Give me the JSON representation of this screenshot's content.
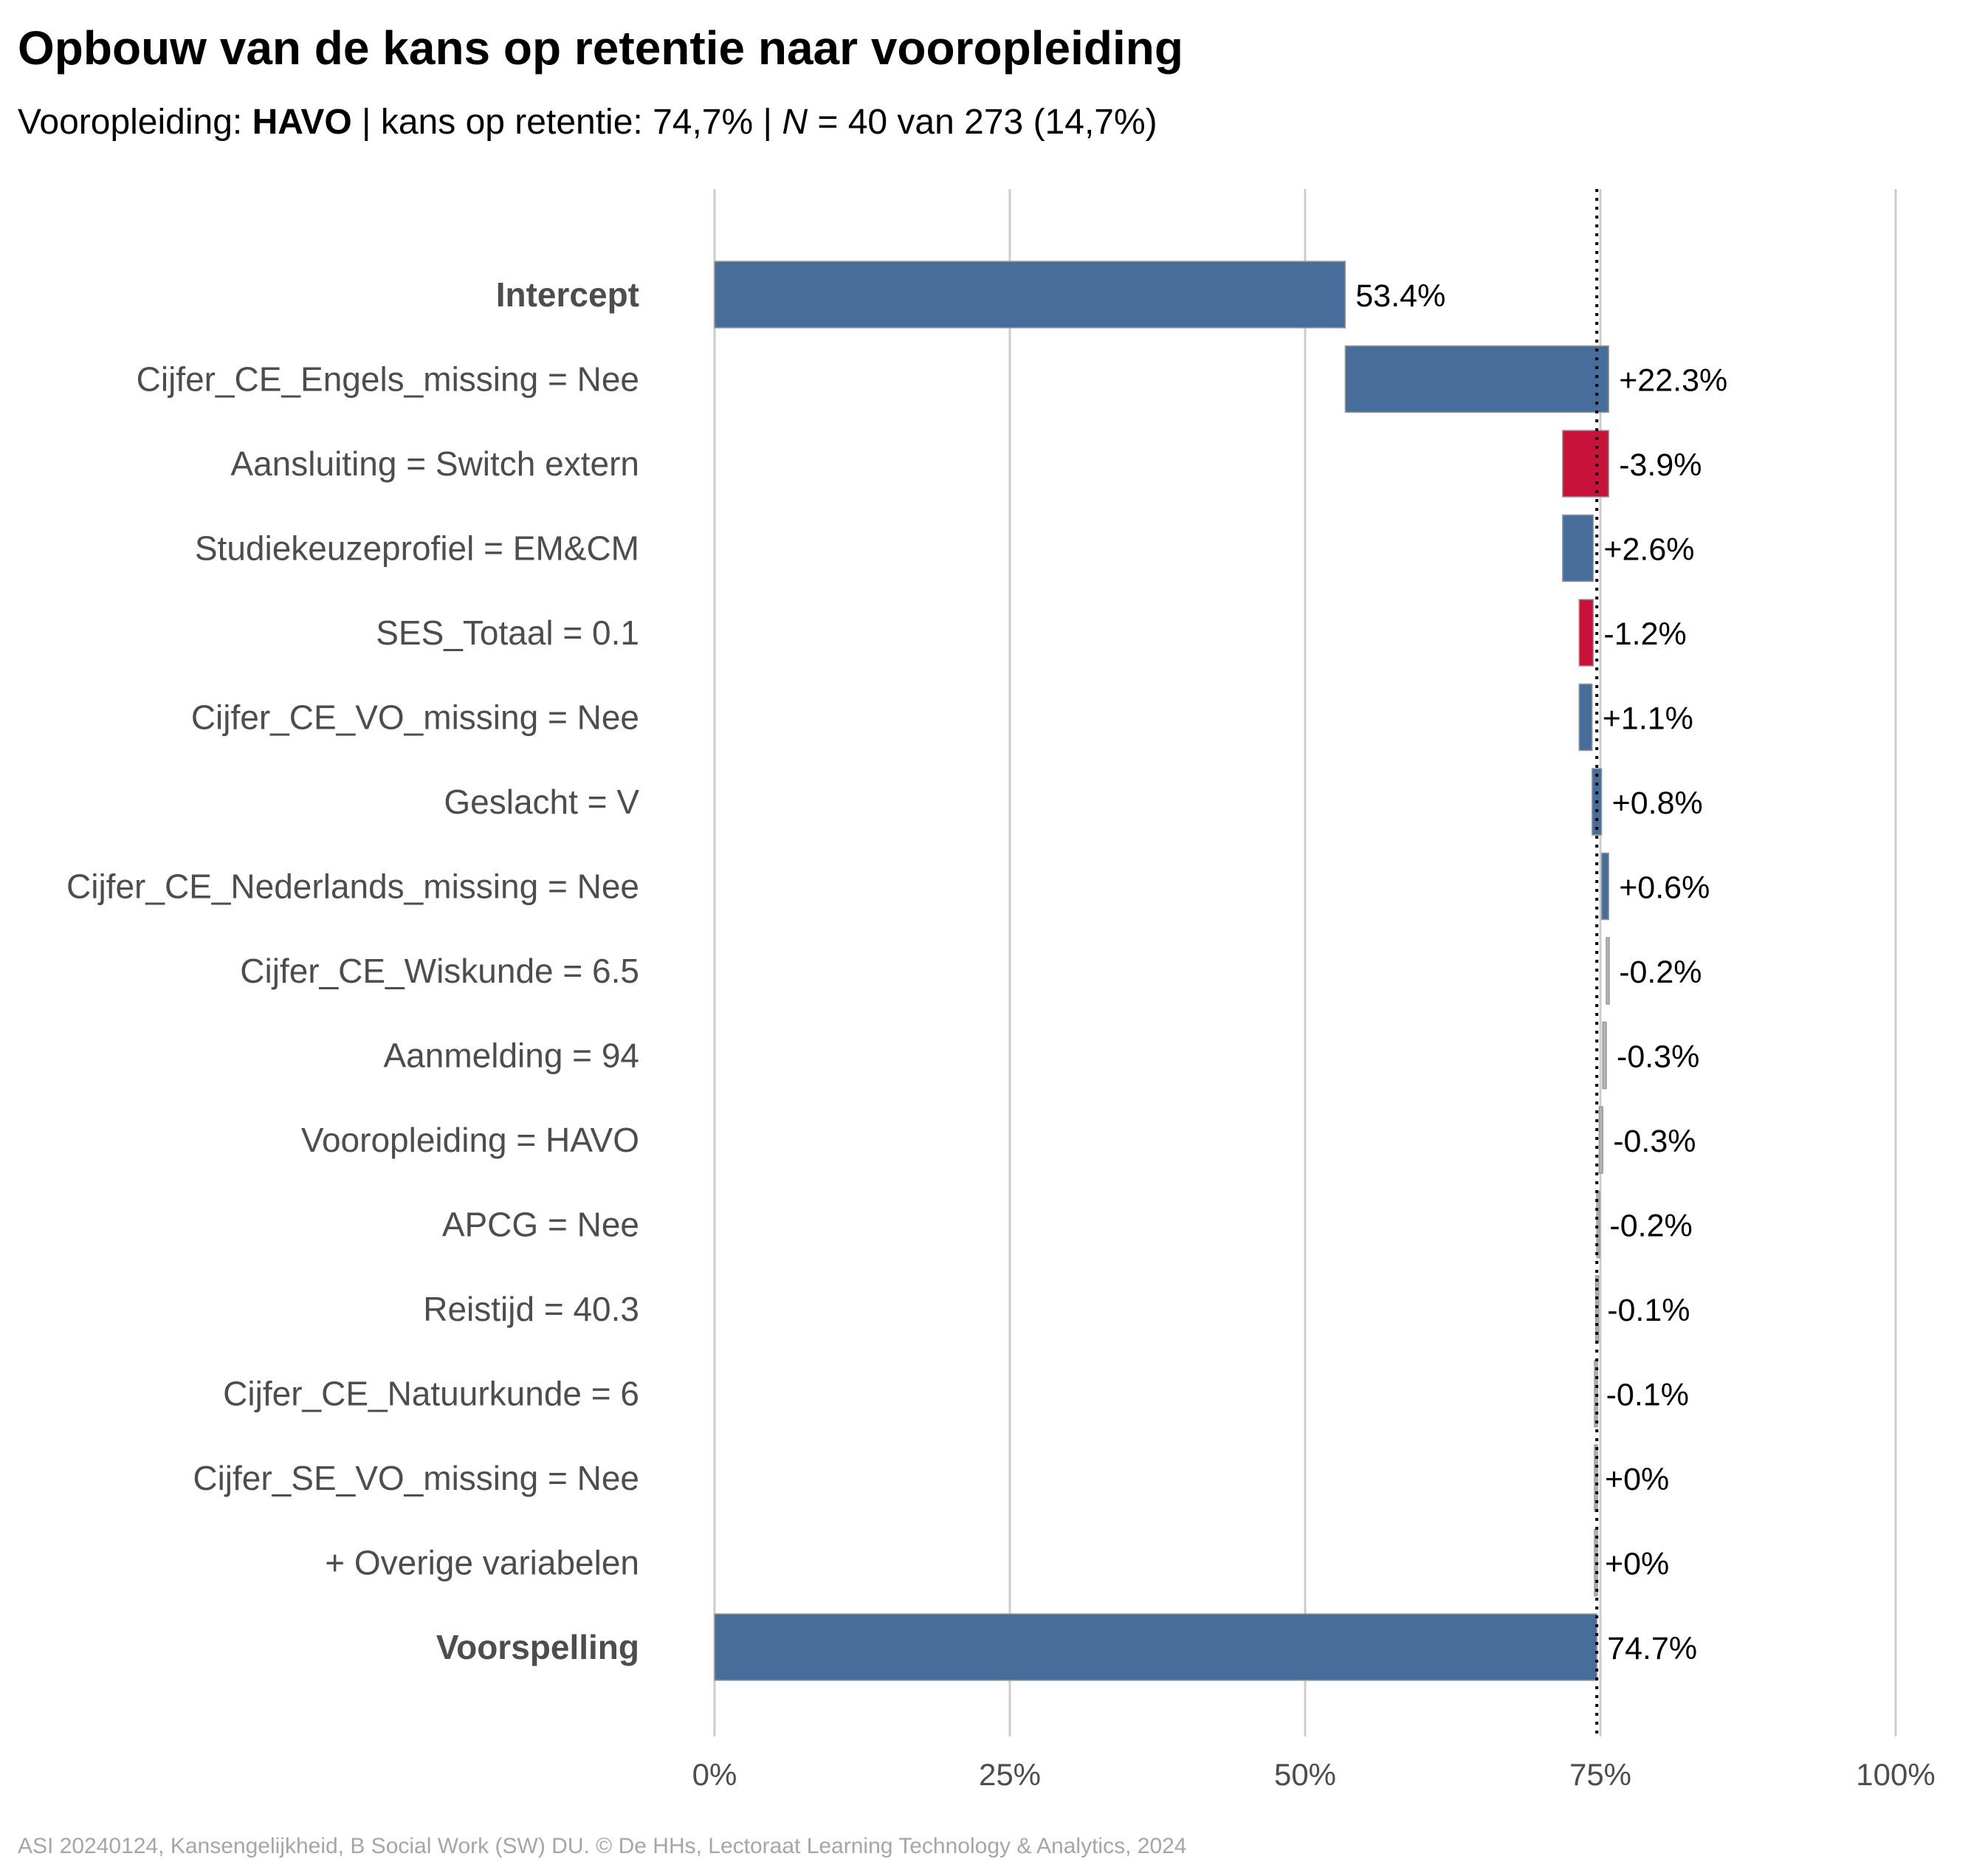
{
  "title": "Opbouw van de kans op retentie naar vooropleiding",
  "subtitle": {
    "prefix": "Vooropleiding: ",
    "group": "HAVO",
    "middle": " | kans op retentie: 74,7% | ",
    "n_symbol": "N",
    "suffix": " = 40 van 273 (14,7%)"
  },
  "caption": "ASI 20240124, Kansengelijkheid, B Social Work (SW) DU. © De HHs, Lectoraat Learning Technology & Analytics, 2024",
  "colors": {
    "positive": "#476e9b",
    "negative": "#c8123a",
    "small": "#b3b3b3",
    "grid": "#cccccc",
    "label_text": "#4d4d4d"
  },
  "chart_data": {
    "type": "bar",
    "subtype": "waterfall",
    "orientation": "horizontal",
    "categories": [
      "Intercept",
      "Cijfer_CE_Engels_missing = Nee",
      "Aansluiting = Switch extern",
      "Studiekeuzeprofiel = EM&CM",
      "SES_Totaal = 0.1",
      "Cijfer_CE_VO_missing = Nee",
      "Geslacht = V",
      "Cijfer_CE_Nederlands_missing = Nee",
      "Cijfer_CE_Wiskunde = 6.5",
      "Aanmelding = 94",
      "Vooropleiding = HAVO",
      "APCG = Nee",
      "Reistijd = 40.3",
      "Cijfer_CE_Natuurkunde = 6",
      "Cijfer_SE_VO_missing = Nee",
      "+ Overige variabelen",
      "Voorspelling"
    ],
    "bold_categories": [
      "Intercept",
      "Voorspelling"
    ],
    "values": [
      53.4,
      22.3,
      -3.9,
      2.6,
      -1.2,
      1.1,
      0.8,
      0.6,
      -0.2,
      -0.3,
      -0.3,
      -0.2,
      -0.1,
      -0.1,
      0,
      0,
      74.7
    ],
    "value_labels": [
      "53.4%",
      "+22.3%",
      "-3.9%",
      "+2.6%",
      "-1.2%",
      "+1.1%",
      "+0.8%",
      "+0.6%",
      "-0.2%",
      "-0.3%",
      "-0.3%",
      "-0.2%",
      "-0.1%",
      "-0.1%",
      "+0%",
      "+0%",
      "74.7%"
    ],
    "bar_kinds": [
      "total",
      "step",
      "step",
      "step",
      "step",
      "step",
      "step",
      "step",
      "step",
      "step",
      "step",
      "step",
      "step",
      "step",
      "step",
      "step",
      "total"
    ],
    "xlim": [
      0,
      100
    ],
    "x_ticks": [
      0,
      25,
      50,
      75,
      100
    ],
    "x_tick_labels": [
      "0%",
      "25%",
      "50%",
      "75%",
      "100%"
    ],
    "reference_line": 74.7,
    "grid": "vertical major lines",
    "xlabel": "",
    "ylabel": ""
  }
}
